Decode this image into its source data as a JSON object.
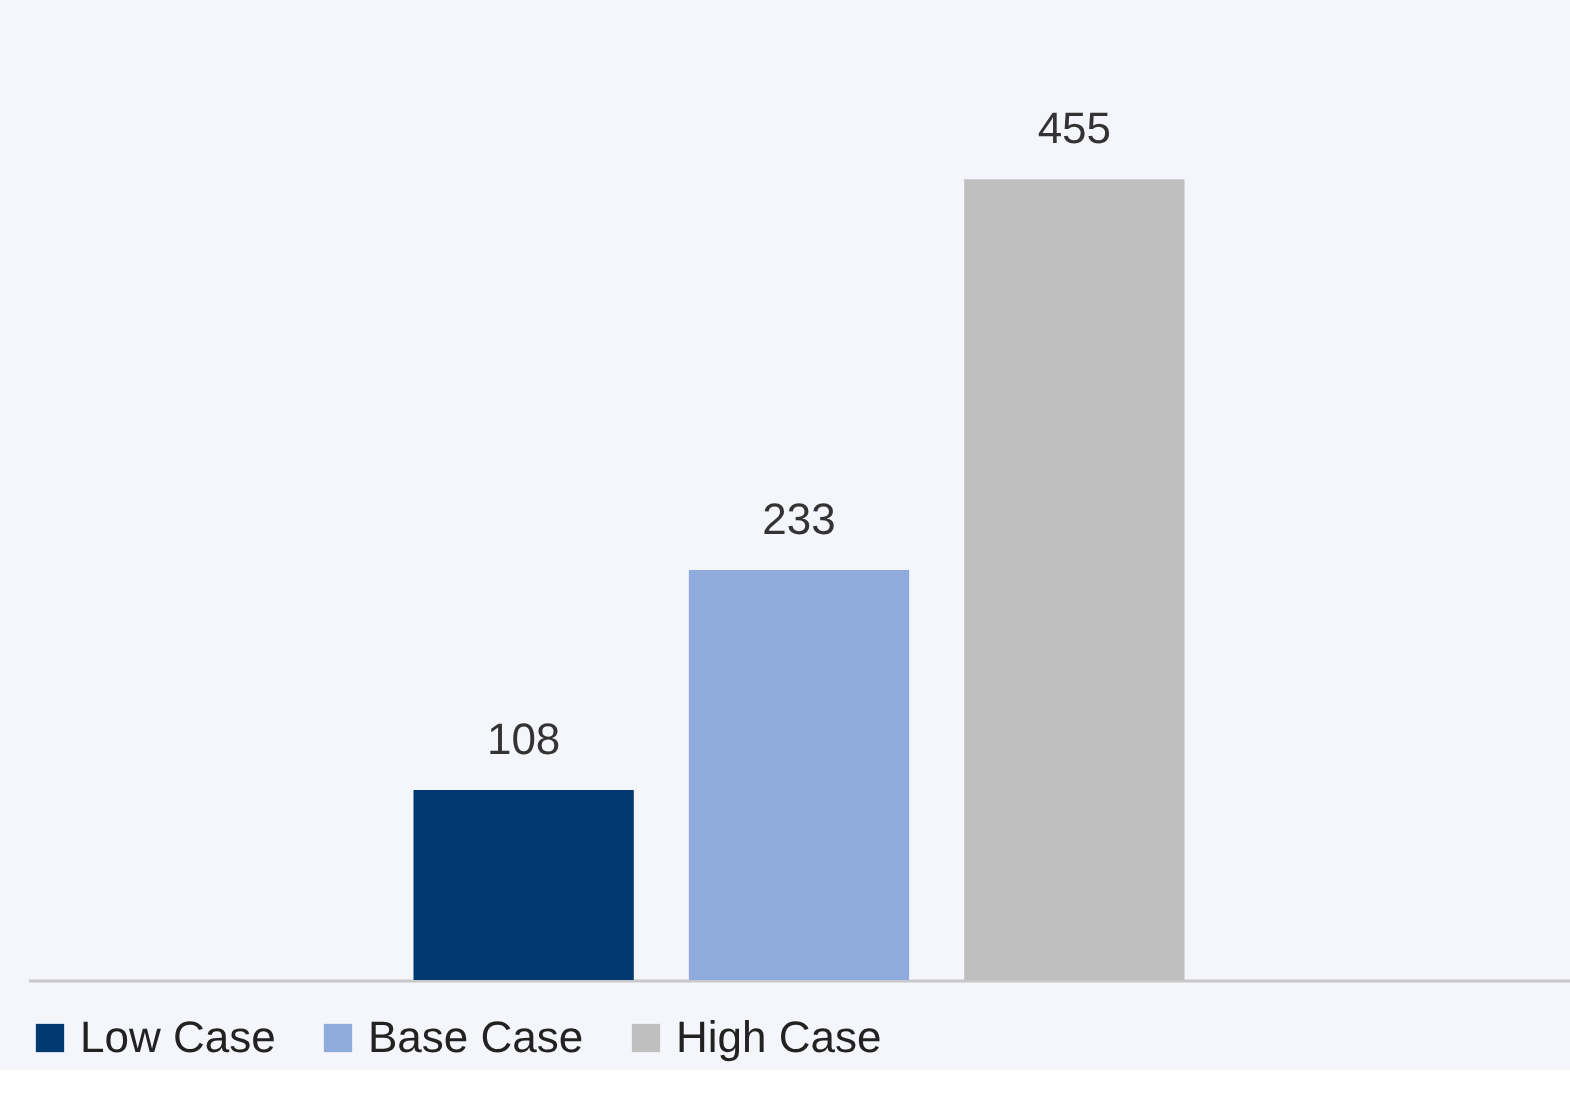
{
  "chart_data": {
    "type": "bar",
    "categories": [
      null
    ],
    "series": [
      {
        "name": "Low Case",
        "color": "#003a70",
        "values": [
          108
        ]
      },
      {
        "name": "Base Case",
        "color": "#8faadc",
        "values": [
          233
        ]
      },
      {
        "name": "High Case",
        "color": "#bfbfbf",
        "values": [
          455
        ]
      }
    ],
    "data_labels": true,
    "legend": "bottom",
    "grid": false
  }
}
